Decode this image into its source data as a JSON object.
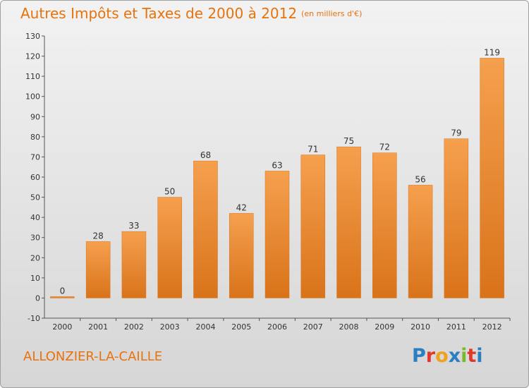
{
  "header": {
    "title": "Autres Impôts et Taxes de 2000 à 2012",
    "unit": "(en milliers d'€)"
  },
  "footer": {
    "commune": "ALLONZIER-LA-CAILLE",
    "logo": "Proxiti"
  },
  "colors": {
    "bar": "#f5a04e",
    "bar_dark": "#d9731a",
    "accent": "#e8720c",
    "logo_letters": [
      "#2a7ec2",
      "#e2382c",
      "#f0a21b",
      "#2a7ec2",
      "#7ab929",
      "#e2382c",
      "#2a7ec2"
    ]
  },
  "chart_data": {
    "type": "bar",
    "title": "Autres Impôts et Taxes de 2000 à 2012",
    "subtitle": "(en milliers d'€)",
    "xlabel": "",
    "ylabel": "",
    "categories": [
      "2000",
      "2001",
      "2002",
      "2003",
      "2004",
      "2005",
      "2006",
      "2007",
      "2008",
      "2009",
      "2010",
      "2011",
      "2012"
    ],
    "values": [
      0,
      28,
      33,
      50,
      68,
      42,
      63,
      71,
      75,
      72,
      56,
      79,
      119
    ],
    "ylim": [
      -10,
      130
    ],
    "yticks": [
      -10,
      0,
      10,
      20,
      30,
      40,
      50,
      60,
      70,
      80,
      90,
      100,
      110,
      120,
      130
    ],
    "grid": false,
    "legend": "none"
  }
}
